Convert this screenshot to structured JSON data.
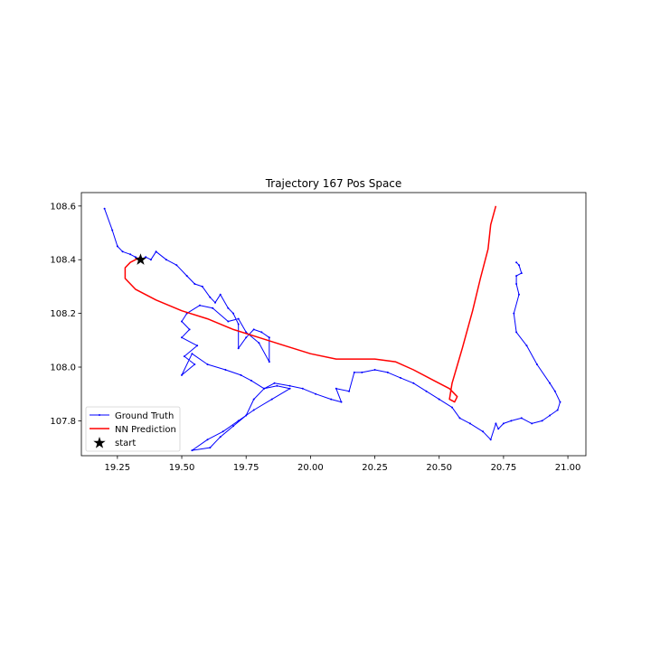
{
  "chart_data": {
    "type": "line",
    "title": "Trajectory 167 Pos Space",
    "xlabel": "",
    "ylabel": "",
    "xlim": [
      19.11,
      21.07
    ],
    "ylim": [
      107.67,
      108.65
    ],
    "xticks": [
      19.25,
      19.5,
      19.75,
      20.0,
      20.25,
      20.5,
      20.75,
      21.0
    ],
    "xtick_labels": [
      "19.25",
      "19.50",
      "19.75",
      "20.00",
      "20.25",
      "20.50",
      "20.75",
      "21.00"
    ],
    "yticks": [
      107.8,
      108.0,
      108.2,
      108.4,
      108.6
    ],
    "ytick_labels": [
      "107.8",
      "108.0",
      "108.2",
      "108.4",
      "108.6"
    ],
    "grid": false,
    "legend_position": "lower-left",
    "series": [
      {
        "name": "Ground Truth",
        "color": "#0000ff",
        "marker": "dot",
        "x": [
          19.2,
          19.23,
          19.25,
          19.27,
          19.3,
          19.32,
          19.34,
          19.36,
          19.38,
          19.4,
          19.44,
          19.48,
          19.52,
          19.55,
          19.58,
          19.61,
          19.63,
          19.65,
          19.68,
          19.7,
          19.72,
          19.72,
          19.75,
          19.78,
          19.81,
          19.84,
          19.84,
          19.8,
          19.75,
          19.72,
          19.68,
          19.62,
          19.57,
          19.52,
          19.5,
          19.53,
          19.5,
          19.56,
          19.51,
          19.55,
          19.5,
          19.54,
          19.6,
          19.67,
          19.73,
          19.77,
          19.82,
          19.87,
          19.92,
          19.85,
          19.78,
          19.72,
          19.66,
          19.6,
          19.54,
          19.61,
          19.65,
          19.7,
          19.75,
          19.78,
          19.82,
          19.86,
          19.92,
          19.97,
          20.02,
          20.08,
          20.12,
          20.1,
          20.15,
          20.17,
          20.2,
          20.25,
          20.3,
          20.35,
          20.4,
          20.45,
          20.5,
          20.55,
          20.58,
          20.62,
          20.67,
          20.7,
          20.72,
          20.73,
          20.75,
          20.78,
          20.82,
          20.86,
          20.9,
          20.93,
          20.96,
          20.97,
          20.95,
          20.93,
          20.88,
          20.84,
          20.8,
          20.79,
          20.81,
          20.8,
          20.8,
          20.82,
          20.81,
          20.8
        ],
        "y": [
          108.59,
          108.51,
          108.45,
          108.43,
          108.42,
          108.41,
          108.4,
          108.41,
          108.4,
          108.43,
          108.4,
          108.38,
          108.34,
          108.31,
          108.3,
          108.26,
          108.24,
          108.27,
          108.22,
          108.2,
          108.16,
          108.07,
          108.11,
          108.14,
          108.13,
          108.11,
          108.02,
          108.09,
          108.13,
          108.18,
          108.17,
          108.22,
          108.23,
          108.2,
          108.17,
          108.14,
          108.11,
          108.08,
          108.04,
          108.01,
          107.97,
          108.05,
          108.01,
          107.99,
          107.97,
          107.95,
          107.92,
          107.93,
          107.92,
          107.88,
          107.84,
          107.8,
          107.76,
          107.73,
          107.69,
          107.7,
          107.74,
          107.78,
          107.82,
          107.88,
          107.92,
          107.94,
          107.93,
          107.92,
          107.9,
          107.88,
          107.87,
          107.92,
          107.91,
          107.98,
          107.98,
          107.99,
          107.98,
          107.96,
          107.94,
          107.91,
          107.88,
          107.85,
          107.81,
          107.79,
          107.76,
          107.73,
          107.79,
          107.77,
          107.79,
          107.8,
          107.81,
          107.79,
          107.8,
          107.82,
          107.84,
          107.87,
          107.91,
          107.94,
          108.01,
          108.08,
          108.13,
          108.2,
          108.27,
          108.31,
          108.34,
          108.35,
          108.38,
          108.39
        ]
      },
      {
        "name": "NN Prediction",
        "color": "#ff0000",
        "marker": "none",
        "x": [
          19.34,
          19.3,
          19.28,
          19.28,
          19.32,
          19.4,
          19.5,
          19.6,
          19.7,
          19.8,
          19.9,
          20.0,
          20.1,
          20.13,
          20.25,
          20.33,
          20.4,
          20.48,
          20.54,
          20.57,
          20.56,
          20.54,
          20.55,
          20.59,
          20.63,
          20.66,
          20.69,
          20.7,
          20.72
        ],
        "y": [
          108.41,
          108.39,
          108.37,
          108.33,
          108.29,
          108.25,
          108.21,
          108.18,
          108.14,
          108.11,
          108.08,
          108.05,
          108.03,
          108.03,
          108.03,
          108.02,
          107.99,
          107.95,
          107.92,
          107.89,
          107.87,
          107.88,
          107.94,
          108.07,
          108.21,
          108.33,
          108.44,
          108.53,
          108.6
        ]
      },
      {
        "name": "start",
        "color": "#000000",
        "marker": "star",
        "x": [
          19.34
        ],
        "y": [
          108.4
        ]
      }
    ]
  }
}
